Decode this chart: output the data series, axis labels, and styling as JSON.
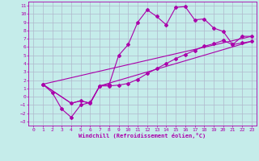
{
  "xlabel": "Windchill (Refroidissement éolien,°C)",
  "bg_color": "#c5ecea",
  "grid_color": "#b0b8cc",
  "line_color": "#aa00aa",
  "xlim": [
    -0.5,
    23.5
  ],
  "ylim": [
    -3.5,
    11.5
  ],
  "xticks": [
    0,
    1,
    2,
    3,
    4,
    5,
    6,
    7,
    8,
    9,
    10,
    11,
    12,
    13,
    14,
    15,
    16,
    17,
    18,
    19,
    20,
    21,
    22,
    23
  ],
  "yticks": [
    -3,
    -2,
    -1,
    0,
    1,
    2,
    3,
    4,
    5,
    6,
    7,
    8,
    9,
    10,
    11
  ],
  "series1_x": [
    1,
    2,
    3,
    4,
    5,
    6,
    7,
    8,
    9,
    10,
    11,
    12,
    13,
    14,
    15,
    16,
    17,
    18,
    19,
    20,
    21,
    22,
    23
  ],
  "series1_y": [
    1.5,
    0.5,
    -1.5,
    -2.5,
    -1.0,
    -0.7,
    1.3,
    1.5,
    5.0,
    6.3,
    9.0,
    10.5,
    9.7,
    8.7,
    10.8,
    10.9,
    9.3,
    9.4,
    8.3,
    7.9,
    6.3,
    7.3,
    7.3
  ],
  "series2_x": [
    1,
    4,
    5,
    6,
    7,
    8,
    9,
    10,
    11,
    12,
    13,
    14,
    15,
    16,
    17,
    18,
    19,
    20,
    21,
    22,
    23
  ],
  "series2_y": [
    1.5,
    -0.8,
    -0.5,
    -0.8,
    1.3,
    1.3,
    1.4,
    1.6,
    2.1,
    2.8,
    3.4,
    4.0,
    4.6,
    5.1,
    5.6,
    6.1,
    6.4,
    6.8,
    6.3,
    6.5,
    6.7
  ],
  "series3_x": [
    1,
    23
  ],
  "series3_y": [
    1.5,
    7.3
  ],
  "series4_x": [
    1,
    4,
    5,
    6,
    7,
    23
  ],
  "series4_y": [
    1.5,
    -0.8,
    -0.5,
    -0.8,
    1.3,
    6.7
  ]
}
